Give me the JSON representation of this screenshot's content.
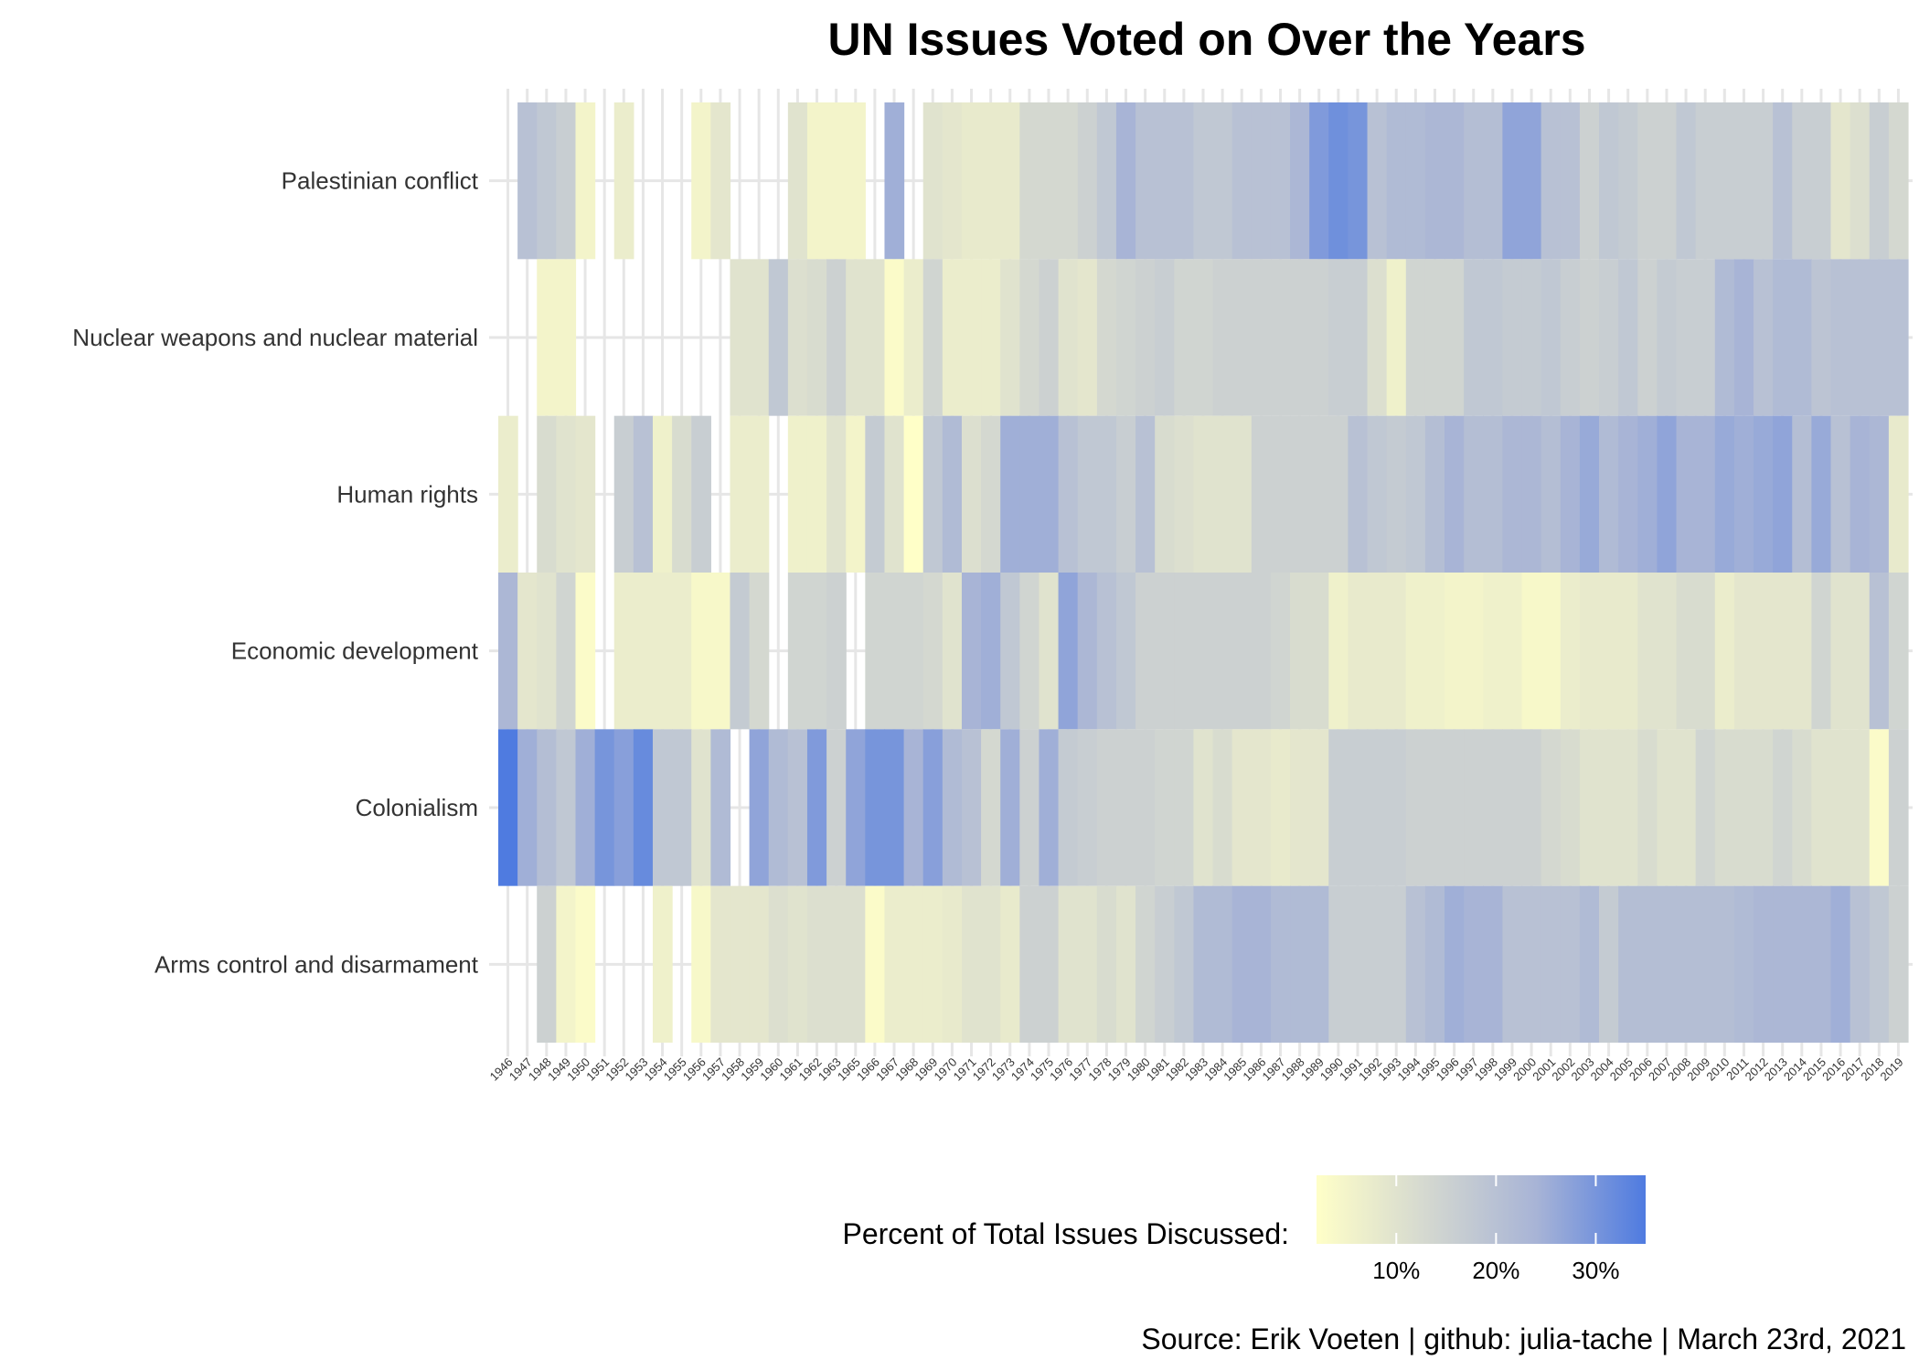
{
  "chart_data": {
    "type": "heatmap",
    "title": "UN Issues Voted on Over the Years",
    "xlabel": "",
    "ylabel": "",
    "years": [
      1946,
      1947,
      1948,
      1949,
      1950,
      1951,
      1952,
      1953,
      1954,
      1955,
      1956,
      1957,
      1958,
      1959,
      1960,
      1961,
      1962,
      1963,
      1965,
      1966,
      1967,
      1968,
      1969,
      1970,
      1971,
      1972,
      1973,
      1974,
      1975,
      1976,
      1977,
      1978,
      1979,
      1980,
      1981,
      1982,
      1983,
      1984,
      1985,
      1986,
      1987,
      1988,
      1989,
      1990,
      1991,
      1992,
      1993,
      1994,
      1995,
      1996,
      1997,
      1998,
      1999,
      2000,
      2001,
      2002,
      2003,
      2004,
      2005,
      2006,
      2007,
      2008,
      2009,
      2010,
      2011,
      2012,
      2013,
      2014,
      2015,
      2016,
      2017,
      2018,
      2019
    ],
    "issues": [
      "Palestinian conflict",
      "Nuclear weapons and nuclear material",
      "Human rights",
      "Economic development",
      "Colonialism",
      "Arms control and disarmament"
    ],
    "values_percent": [
      [
        null,
        20,
        18,
        16,
        5,
        null,
        7,
        null,
        null,
        null,
        5,
        9,
        null,
        null,
        null,
        10,
        5,
        5,
        5,
        null,
        25,
        null,
        10,
        9,
        8,
        8,
        8,
        13,
        13,
        13,
        15,
        18,
        24,
        20,
        20,
        20,
        18,
        18,
        20,
        20,
        20,
        23,
        29,
        31,
        30,
        20,
        22,
        22,
        23,
        23,
        21,
        21,
        27,
        27,
        20,
        20,
        15,
        18,
        17,
        15,
        15,
        18,
        16,
        16,
        16,
        16,
        20,
        16,
        16,
        9,
        11,
        16,
        13
      ],
      [
        null,
        null,
        5,
        5,
        null,
        null,
        null,
        null,
        null,
        null,
        null,
        null,
        10,
        10,
        18,
        11,
        12,
        15,
        10,
        10,
        3,
        7,
        14,
        7,
        7,
        7,
        10,
        13,
        15,
        10,
        9,
        13,
        14,
        15,
        16,
        14,
        14,
        15,
        15,
        15,
        15,
        15,
        15,
        16,
        16,
        11,
        6,
        14,
        14,
        14,
        18,
        18,
        17,
        17,
        18,
        16,
        15,
        16,
        18,
        15,
        17,
        16,
        16,
        22,
        24,
        20,
        22,
        22,
        19,
        20,
        20,
        20,
        20
      ],
      [
        7,
        null,
        12,
        10,
        9,
        null,
        16,
        20,
        6,
        12,
        16,
        null,
        7,
        7,
        null,
        6,
        6,
        10,
        5,
        17,
        10,
        2,
        18,
        22,
        11,
        13,
        25,
        25,
        25,
        20,
        18,
        18,
        16,
        20,
        12,
        11,
        10,
        10,
        10,
        15,
        15,
        15,
        15,
        15,
        20,
        18,
        17,
        18,
        21,
        24,
        21,
        21,
        23,
        23,
        21,
        24,
        26,
        22,
        24,
        25,
        27,
        24,
        24,
        26,
        25,
        26,
        27,
        21,
        26,
        20,
        24,
        23,
        8
      ],
      [
        23,
        9,
        10,
        14,
        3,
        null,
        7,
        7,
        7,
        7,
        4,
        4,
        17,
        13,
        null,
        14,
        14,
        15,
        null,
        14,
        14,
        14,
        13,
        10,
        24,
        25,
        18,
        14,
        10,
        27,
        23,
        20,
        18,
        15,
        15,
        15,
        15,
        15,
        15,
        15,
        14,
        12,
        12,
        6,
        8,
        8,
        8,
        6,
        6,
        5,
        5,
        6,
        6,
        4,
        4,
        7,
        8,
        8,
        8,
        10,
        10,
        12,
        12,
        7,
        9,
        9,
        9,
        9,
        14,
        10,
        10,
        20,
        14
      ],
      [
        35,
        25,
        21,
        18,
        25,
        30,
        28,
        32,
        18,
        18,
        10,
        22,
        null,
        27,
        22,
        20,
        29,
        15,
        27,
        30,
        30,
        24,
        28,
        22,
        20,
        13,
        25,
        15,
        25,
        17,
        16,
        15,
        15,
        15,
        14,
        14,
        10,
        12,
        9,
        9,
        8,
        9,
        9,
        16,
        16,
        16,
        16,
        15,
        15,
        15,
        15,
        15,
        15,
        15,
        13,
        12,
        10,
        10,
        10,
        12,
        10,
        10,
        14,
        12,
        12,
        12,
        14,
        12,
        10,
        10,
        10,
        3,
        15
      ],
      [
        null,
        null,
        15,
        5,
        3,
        null,
        null,
        null,
        6,
        null,
        4,
        9,
        9,
        9,
        11,
        10,
        11,
        11,
        11,
        3,
        7,
        7,
        7,
        8,
        10,
        10,
        8,
        15,
        15,
        10,
        10,
        12,
        10,
        14,
        16,
        18,
        22,
        22,
        24,
        24,
        22,
        22,
        22,
        16,
        16,
        16,
        16,
        20,
        22,
        25,
        24,
        24,
        20,
        20,
        20,
        20,
        22,
        17,
        21,
        21,
        21,
        21,
        21,
        21,
        22,
        23,
        23,
        23,
        23,
        25,
        20,
        18,
        15
      ]
    ],
    "legend": {
      "title": "Percent of Total Issues Discussed:",
      "tick_values": [
        10,
        20,
        30
      ],
      "tick_labels": [
        "10%",
        "20%",
        "30%"
      ],
      "range": [
        2,
        35
      ],
      "placement": "bottom"
    },
    "colors": [
      "#FFFFC8",
      "#D4D8D0",
      "#A8B4D6",
      "#4F7BE0"
    ],
    "grid": true,
    "caption": "Source: Erik Voeten | github: julia-tache | March 23rd, 2021"
  }
}
